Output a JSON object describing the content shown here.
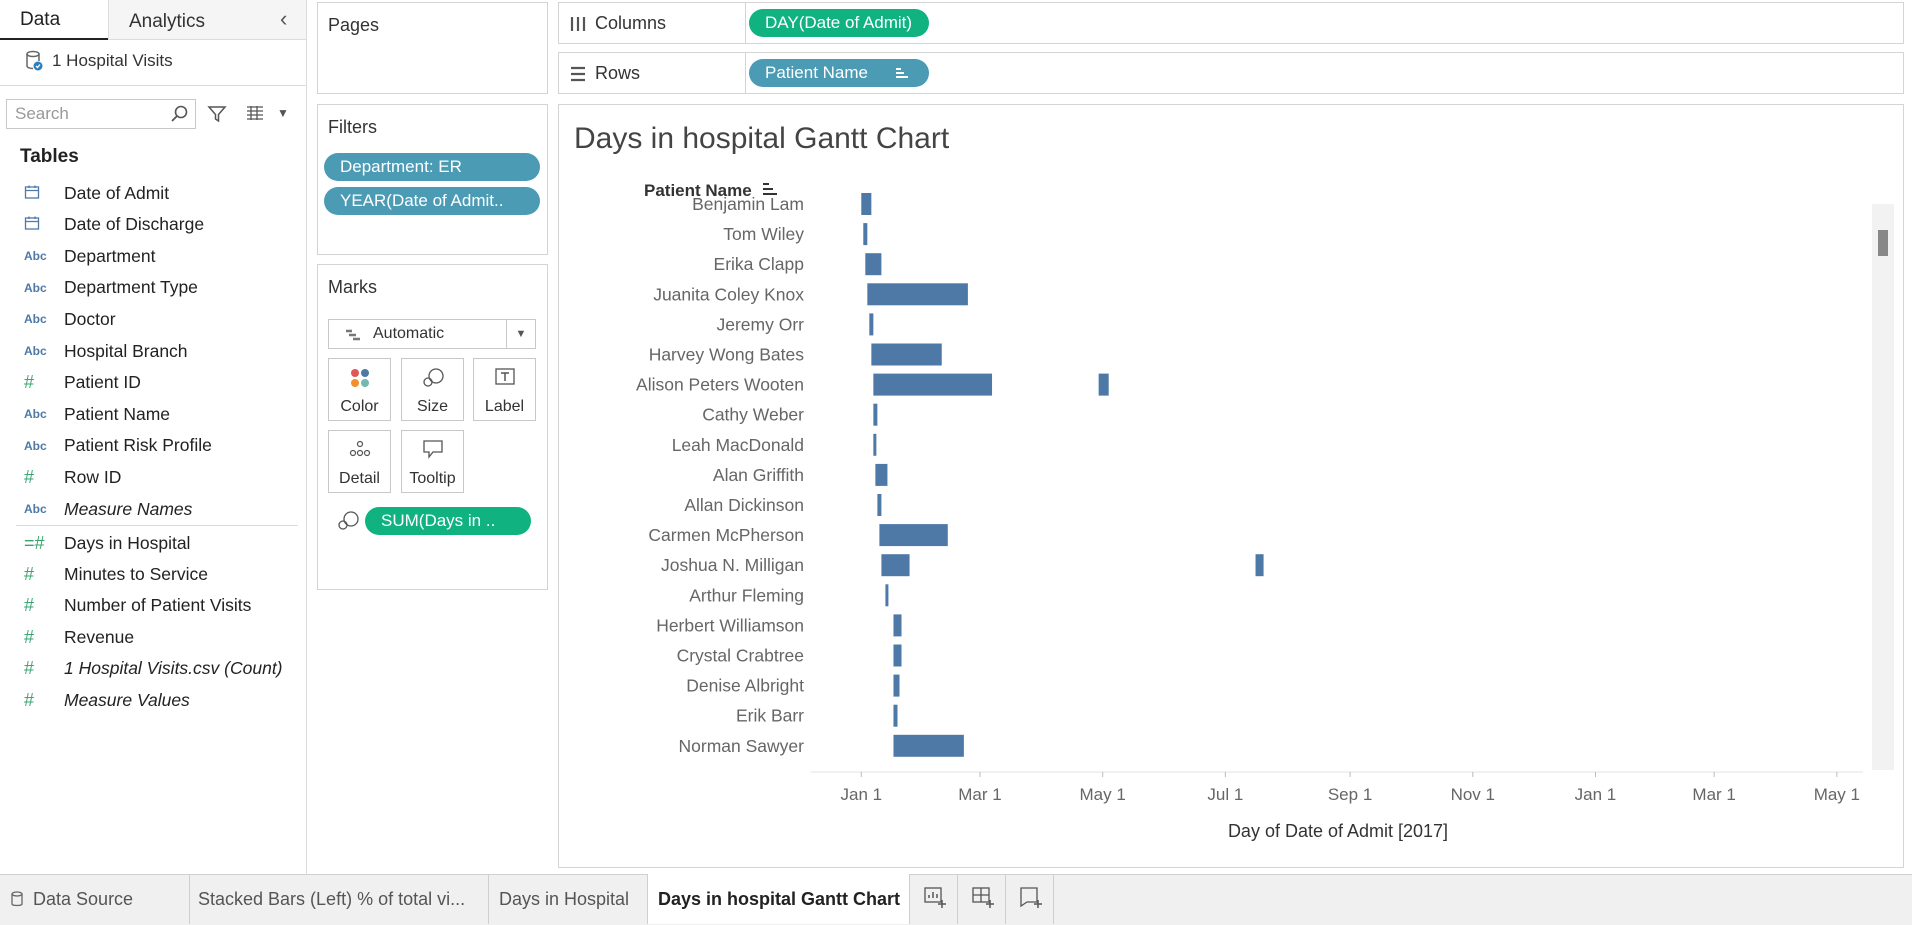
{
  "left_pane": {
    "tabs": [
      "Data",
      "Analytics"
    ],
    "datasource": "1 Hospital Visits",
    "search_placeholder": "Search",
    "tables_label": "Tables",
    "dimensions": [
      {
        "icon": "calendar-icon",
        "label": "Date of Admit"
      },
      {
        "icon": "calendar-icon",
        "label": "Date of Discharge"
      },
      {
        "icon": "abc-icon",
        "label": "Department"
      },
      {
        "icon": "abc-icon",
        "label": "Department Type"
      },
      {
        "icon": "abc-icon",
        "label": "Doctor"
      },
      {
        "icon": "abc-icon",
        "label": "Hospital Branch"
      },
      {
        "icon": "hash-icon",
        "label": "Patient ID"
      },
      {
        "icon": "abc-icon",
        "label": "Patient Name"
      },
      {
        "icon": "abc-icon",
        "label": "Patient Risk Profile"
      },
      {
        "icon": "hash-icon",
        "label": "Row ID"
      },
      {
        "icon": "abc-icon",
        "label": "Measure Names"
      }
    ],
    "measures": [
      {
        "icon": "bin-hash-icon",
        "label": "Days in Hospital"
      },
      {
        "icon": "hash-icon",
        "label": "Minutes to Service"
      },
      {
        "icon": "hash-icon",
        "label": "Number of Patient Visits"
      },
      {
        "icon": "hash-icon",
        "label": "Revenue"
      },
      {
        "icon": "hash-icon",
        "label": "1 Hospital Visits.csv (Count)"
      },
      {
        "icon": "hash-icon",
        "label": "Measure Values"
      }
    ]
  },
  "pages": {
    "title": "Pages"
  },
  "filters": {
    "title": "Filters",
    "items": [
      "Department: ER",
      "YEAR(Date of Admit.."
    ]
  },
  "marks": {
    "title": "Marks",
    "type": "Automatic",
    "buttons": [
      "Color",
      "Size",
      "Label",
      "Detail",
      "Tooltip"
    ],
    "size_pill": "SUM(Days in .."
  },
  "columns": {
    "label": "Columns",
    "pill": "DAY(Date of Admit)"
  },
  "rows": {
    "label": "Rows",
    "pill": "Patient Name"
  },
  "bar_color": "#4e79a7",
  "chart_data": {
    "type": "gantt",
    "title": "Days in hospital Gantt Chart",
    "row_header": "Patient Name",
    "xlabel": "Day of Date of Admit [2017]",
    "x_ticks": [
      "Jan 1",
      "Mar 1",
      "May 1",
      "Jul 1",
      "Sep 1",
      "Nov 1",
      "Jan 1",
      "Mar 1",
      "May 1"
    ],
    "x_tick_days": [
      0,
      59,
      120,
      181,
      243,
      304,
      365,
      424,
      485
    ],
    "xlim": [
      -25,
      498
    ],
    "bars": [
      {
        "name": "Benjamin Lam",
        "segments": [
          [
            0,
            5
          ]
        ]
      },
      {
        "name": "Tom Wiley",
        "segments": [
          [
            1,
            3
          ]
        ]
      },
      {
        "name": "Erika Clapp",
        "segments": [
          [
            2,
            10
          ]
        ]
      },
      {
        "name": "Juanita Coley Knox",
        "segments": [
          [
            3,
            53
          ]
        ]
      },
      {
        "name": "Jeremy Orr",
        "segments": [
          [
            4,
            6
          ]
        ]
      },
      {
        "name": "Harvey Wong Bates",
        "segments": [
          [
            5,
            40
          ]
        ]
      },
      {
        "name": "Alison Peters Wooten",
        "segments": [
          [
            6,
            65
          ],
          [
            118,
            123
          ]
        ]
      },
      {
        "name": "Cathy Weber",
        "segments": [
          [
            6,
            8
          ]
        ]
      },
      {
        "name": "Leah MacDonald",
        "segments": [
          [
            6,
            7
          ]
        ]
      },
      {
        "name": "Alan Griffith",
        "segments": [
          [
            7,
            13
          ]
        ]
      },
      {
        "name": "Allan Dickinson",
        "segments": [
          [
            8,
            10
          ]
        ]
      },
      {
        "name": "Carmen McPherson",
        "segments": [
          [
            9,
            43
          ]
        ]
      },
      {
        "name": "Joshua N. Milligan",
        "segments": [
          [
            10,
            24
          ],
          [
            196,
            200
          ]
        ]
      },
      {
        "name": "Arthur Fleming",
        "segments": [
          [
            12,
            13
          ]
        ]
      },
      {
        "name": "Herbert Williamson",
        "segments": [
          [
            16,
            20
          ]
        ]
      },
      {
        "name": "Crystal Crabtree",
        "segments": [
          [
            16,
            20
          ]
        ]
      },
      {
        "name": "Denise Albright",
        "segments": [
          [
            16,
            19
          ]
        ]
      },
      {
        "name": "Erik Barr",
        "segments": [
          [
            16,
            18
          ]
        ]
      },
      {
        "name": "Norman Sawyer",
        "segments": [
          [
            16,
            51
          ]
        ]
      }
    ]
  },
  "bottom_tabs": [
    "Data Source",
    "Stacked Bars (Left) % of total vi...",
    "Days in Hospital",
    "Days in hospital Gantt Chart"
  ],
  "active_tab": "Days in hospital Gantt Chart"
}
